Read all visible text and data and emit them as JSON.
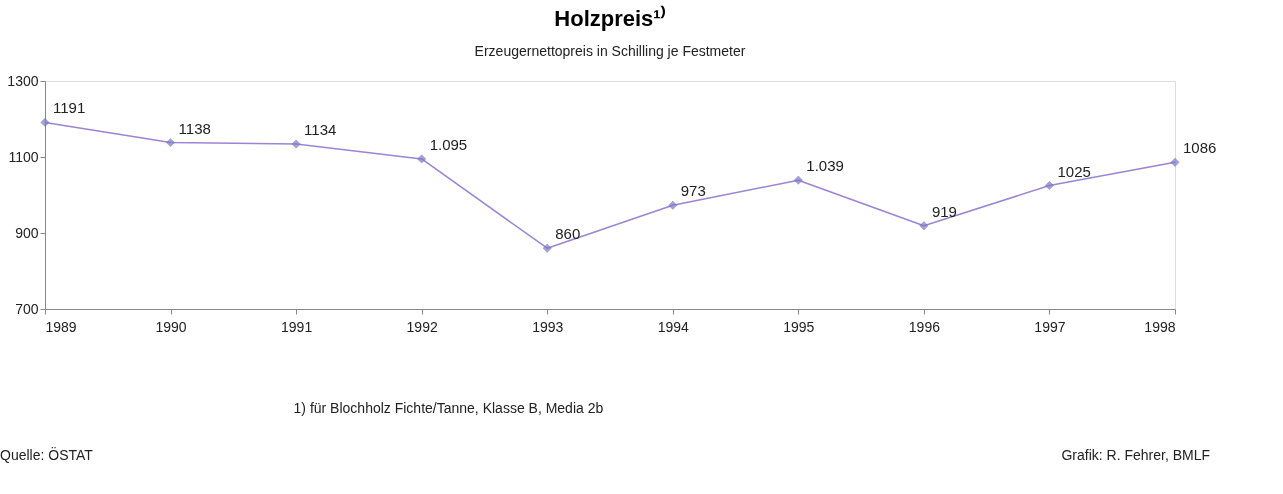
{
  "chart_data": {
    "type": "line",
    "title": "Holzpreis¹⁾",
    "subtitle": "Erzeugernettopreis in Schilling je Festmeter",
    "categories": [
      "1989",
      "1990",
      "1991",
      "1992",
      "1993",
      "1994",
      "1995",
      "1996",
      "1997",
      "1998"
    ],
    "series": [
      {
        "color": "#9b84d6",
        "values": [
          1191,
          1138,
          1134,
          1095,
          860,
          973,
          1039,
          919,
          1025,
          1086
        ],
        "value_labels": [
          "1191",
          "1138",
          "1134",
          "1.095",
          "860",
          "973",
          "1.039",
          "919",
          "1025",
          "1086"
        ]
      }
    ],
    "ylim": [
      700,
      1300
    ],
    "yticks": [
      700,
      900,
      1100,
      1300
    ],
    "grid": false,
    "marker": "diamond",
    "line_style": "solid",
    "annotations": [
      "1) für Blochholz Fichte/Tanne, Klasse B, Media 2b",
      "Quelle: ÖSTAT",
      "Grafik: R. Fehrer, BMLF"
    ]
  }
}
